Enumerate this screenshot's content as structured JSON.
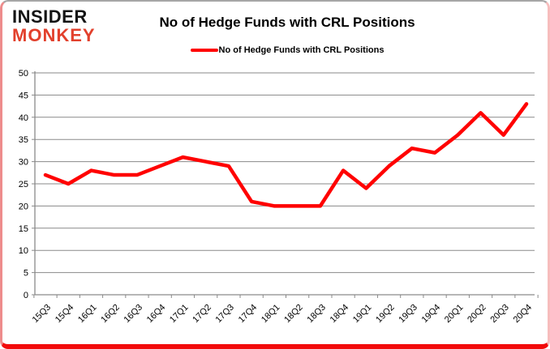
{
  "logo": {
    "line1": "INSIDER",
    "line2": "MONKEY"
  },
  "header": {
    "title": "No of Hedge Funds with CRL Positions"
  },
  "legend": {
    "label": "No of Hedge Funds with CRL Positions",
    "color": "#ff0000"
  },
  "colors": {
    "line": "#ff0000",
    "grid": "#8a8a8a",
    "axis": "#8a8a8a",
    "tick_text": "#000000",
    "logo_black": "#141414",
    "logo_red": "#e2402c",
    "frame_bottom": "#f20b0b"
  },
  "chart_data": {
    "type": "line",
    "title": "No of Hedge Funds with CRL Positions",
    "categories": [
      "15Q3",
      "15Q4",
      "16Q1",
      "16Q2",
      "16Q3",
      "16Q4",
      "17Q1",
      "17Q2",
      "17Q3",
      "17Q4",
      "18Q1",
      "18Q2",
      "18Q3",
      "18Q4",
      "19Q1",
      "19Q2",
      "19Q3",
      "19Q4",
      "20Q1",
      "20Q2",
      "20Q3",
      "20Q4"
    ],
    "series": [
      {
        "name": "No of Hedge Funds with CRL Positions",
        "color": "#ff0000",
        "values": [
          27,
          25,
          28,
          27,
          27,
          29,
          31,
          30,
          29,
          21,
          20,
          20,
          20,
          28,
          24,
          29,
          33,
          32,
          36,
          41,
          36,
          43
        ]
      }
    ],
    "xlabel": "",
    "ylabel": "",
    "ylim": [
      0,
      50
    ],
    "ytick_step": 5,
    "yticks": [
      0,
      5,
      10,
      15,
      20,
      25,
      30,
      35,
      40,
      45,
      50
    ],
    "grid": true,
    "legend_position": "top",
    "x_label_rotation": -45
  }
}
